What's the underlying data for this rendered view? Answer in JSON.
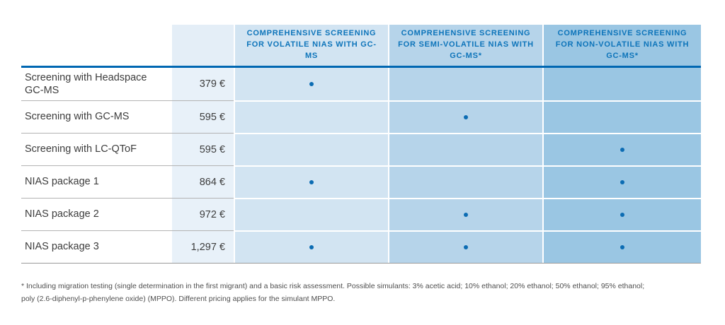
{
  "colors": {
    "accent_blue": "#0d74ba",
    "rule_blue": "#0067b2",
    "dot_blue": "#0c6cb3",
    "col_volatile_bg": "#d2e4f2",
    "col_semivolatile_bg": "#b6d4ea",
    "col_nonvolatile_bg": "#9ac6e3",
    "price_col_bg": "#e8f1f9",
    "price_header_bg": "#e4eef7",
    "sep_gray": "#b3b3b3",
    "bottom_gray": "#9a9a9a",
    "label_text": "#3d3d3d",
    "footnote_text": "#4f4f4f"
  },
  "table": {
    "columns": [
      {
        "label": "Comprehensive screening for volatile NIAS with GC-MS"
      },
      {
        "label": "Comprehensive screening for semi-volatile NIAS with GC-MS*"
      },
      {
        "label": "Comprehensive screening for non-volatile NIAS with GC-MS*"
      }
    ],
    "rows": [
      {
        "label": "Screening with Headspace GC-MS",
        "price": "379 €",
        "dots": [
          true,
          false,
          false
        ]
      },
      {
        "label": "Screening with GC-MS",
        "price": "595 €",
        "dots": [
          false,
          true,
          false
        ]
      },
      {
        "label": "Screening with LC-QToF",
        "price": "595 €",
        "dots": [
          false,
          false,
          true
        ]
      },
      {
        "label": "NIAS package 1",
        "price": "864 €",
        "dots": [
          true,
          false,
          true
        ]
      },
      {
        "label": "NIAS package 2",
        "price": "972 €",
        "dots": [
          false,
          true,
          true
        ]
      },
      {
        "label": "NIAS package 3",
        "price": "1,297 €",
        "dots": [
          true,
          true,
          true
        ]
      }
    ]
  },
  "footnote": {
    "line1": "* Including migration testing (single determination in the first migrant) and a basic risk assessment. Possible simulants: 3% acetic acid; 10% ethanol; 20% ethanol; 50% ethanol; 95% ethanol;",
    "line2": "poly (2.6-diphenyl-p-phenylene oxide) (MPPO). Different pricing applies for the simulant MPPO."
  }
}
